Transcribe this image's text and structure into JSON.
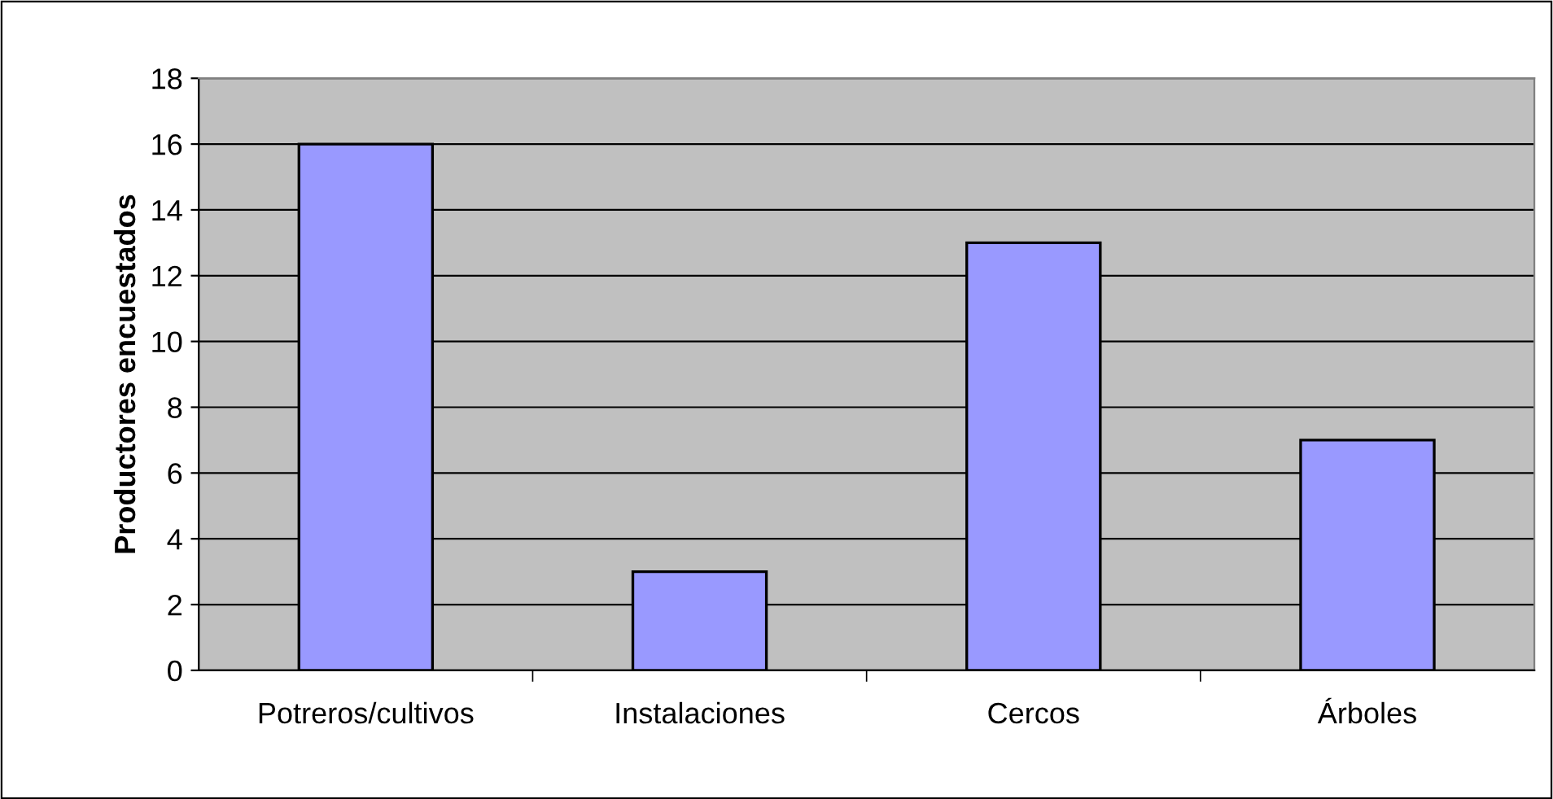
{
  "chart_data": {
    "type": "bar",
    "ylabel": "Productores encuestados",
    "categories": [
      "Potreros/cultivos",
      "Instalaciones",
      "Cercos",
      "Árboles"
    ],
    "values": [
      16,
      3,
      13,
      7
    ],
    "color": "#9999ff",
    "ylim": [
      0,
      18
    ],
    "yticks": [
      0,
      2,
      4,
      6,
      8,
      10,
      12,
      14,
      16,
      18
    ],
    "grid": "y"
  }
}
